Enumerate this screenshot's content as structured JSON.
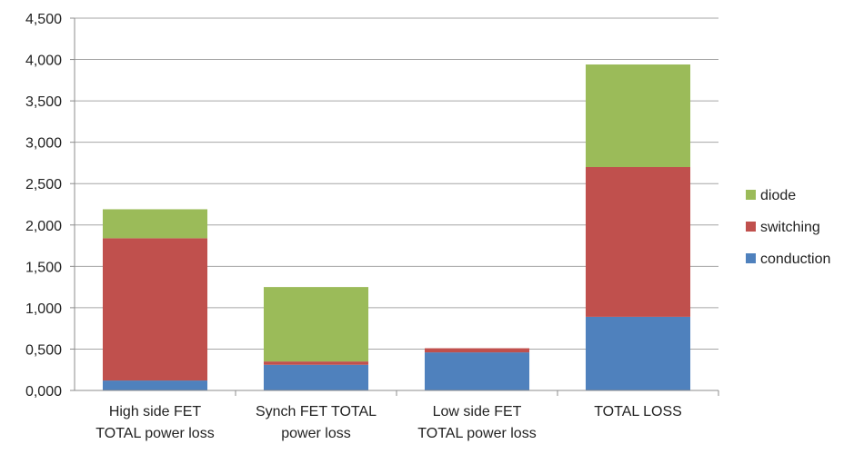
{
  "chart_data": {
    "type": "bar",
    "stacked": true,
    "categories": [
      [
        "High side FET",
        "TOTAL power loss"
      ],
      [
        "Synch FET TOTAL",
        "power loss"
      ],
      [
        "Low side FET",
        "TOTAL power loss"
      ],
      [
        "TOTAL LOSS"
      ]
    ],
    "series": [
      {
        "name": "conduction",
        "color": "#4f81bd",
        "values": [
          0.12,
          0.31,
          0.46,
          0.89
        ]
      },
      {
        "name": "switching",
        "color": "#c0504d",
        "values": [
          1.72,
          0.04,
          0.05,
          1.81
        ]
      },
      {
        "name": "diode",
        "color": "#9bbb59",
        "values": [
          0.35,
          0.9,
          0.0,
          1.24
        ]
      }
    ],
    "ylim": [
      0,
      4.5
    ],
    "yticks": [
      0,
      0.5,
      1.0,
      1.5,
      2.0,
      2.5,
      3.0,
      3.5,
      4.0,
      4.5
    ],
    "ytick_labels": [
      "0,000",
      "0,500",
      "1,000",
      "1,500",
      "2,000",
      "2,500",
      "3,000",
      "3,500",
      "4,000",
      "4,500"
    ],
    "grid": true,
    "legend": "right",
    "legend_order": [
      "diode",
      "switching",
      "conduction"
    ],
    "title": "",
    "xlabel": "",
    "ylabel": ""
  }
}
